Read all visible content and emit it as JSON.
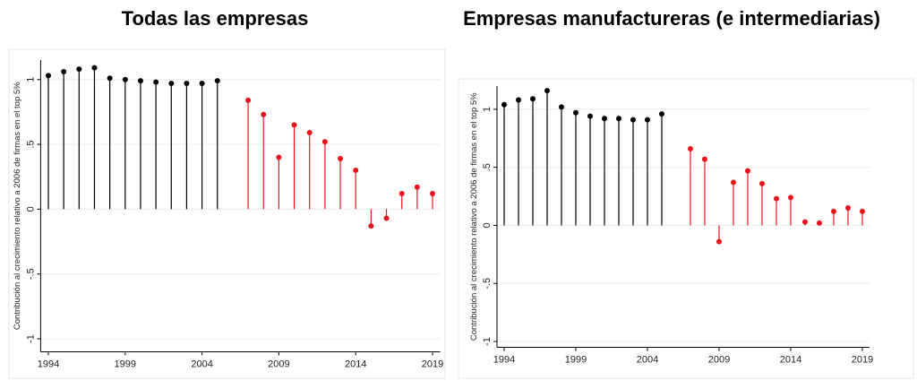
{
  "chart_data": [
    {
      "type": "stem",
      "title": "Todas las empresas",
      "ylabel": "Contribución al crecimiento relativo a 2006 de firmas en el top 5%",
      "x": [
        1994,
        1995,
        1996,
        1997,
        1998,
        1999,
        2000,
        2001,
        2002,
        2003,
        2004,
        2005,
        2006,
        2007,
        2008,
        2009,
        2010,
        2011,
        2012,
        2013,
        2014,
        2015,
        2016,
        2017,
        2018,
        2019
      ],
      "series": [
        {
          "color": "#000000",
          "values": [
            1.03,
            1.06,
            1.08,
            1.09,
            1.01,
            1.0,
            0.99,
            0.98,
            0.97,
            0.97,
            0.97,
            0.99,
            null,
            null,
            null,
            null,
            null,
            null,
            null,
            null,
            null,
            null,
            null,
            null,
            null,
            null
          ]
        },
        {
          "color": "#e8141c",
          "values": [
            null,
            null,
            null,
            null,
            null,
            null,
            null,
            null,
            null,
            null,
            null,
            null,
            null,
            0.84,
            0.73,
            0.4,
            0.65,
            0.59,
            0.52,
            0.39,
            0.3,
            -0.13,
            -0.07,
            0.12,
            0.17,
            0.12
          ]
        }
      ],
      "xlim": [
        1993.5,
        2019.5
      ],
      "xticks": [
        1994,
        1999,
        2004,
        2009,
        2014,
        2019
      ],
      "ylim": [
        -1.1,
        1.15
      ],
      "yticks": [
        -1,
        {
          "value": -0.5,
          "label": "-.5"
        },
        0,
        {
          "value": 0.5,
          "label": ".5"
        },
        1
      ],
      "grid": true
    },
    {
      "type": "stem",
      "title": "Empresas manufactureras (e intermediarias)",
      "ylabel": "Contribución al crecimiento relativo a 2006 de firmas en el top 5%",
      "x": [
        1994,
        1995,
        1996,
        1997,
        1998,
        1999,
        2000,
        2001,
        2002,
        2003,
        2004,
        2005,
        2006,
        2007,
        2008,
        2009,
        2010,
        2011,
        2012,
        2013,
        2014,
        2015,
        2016,
        2017,
        2018,
        2019
      ],
      "series": [
        {
          "color": "#000000",
          "values": [
            1.04,
            1.08,
            1.09,
            1.16,
            1.02,
            0.97,
            0.94,
            0.92,
            0.92,
            0.91,
            0.91,
            0.96,
            null,
            null,
            null,
            null,
            null,
            null,
            null,
            null,
            null,
            null,
            null,
            null,
            null,
            null
          ]
        },
        {
          "color": "#e8141c",
          "values": [
            null,
            null,
            null,
            null,
            null,
            null,
            null,
            null,
            null,
            null,
            null,
            null,
            null,
            0.66,
            0.57,
            -0.14,
            0.37,
            0.47,
            0.36,
            0.23,
            0.24,
            0.03,
            0.02,
            0.12,
            0.15,
            0.12
          ]
        }
      ],
      "xlim": [
        1993.5,
        2019.5
      ],
      "xticks": [
        1994,
        1999,
        2004,
        2009,
        2014,
        2019
      ],
      "ylim": [
        -1.05,
        1.2
      ],
      "yticks": [
        -1,
        {
          "value": -0.5,
          "label": "-.5"
        },
        0,
        {
          "value": 0.5,
          "label": ".5"
        },
        1
      ],
      "grid": true
    }
  ]
}
